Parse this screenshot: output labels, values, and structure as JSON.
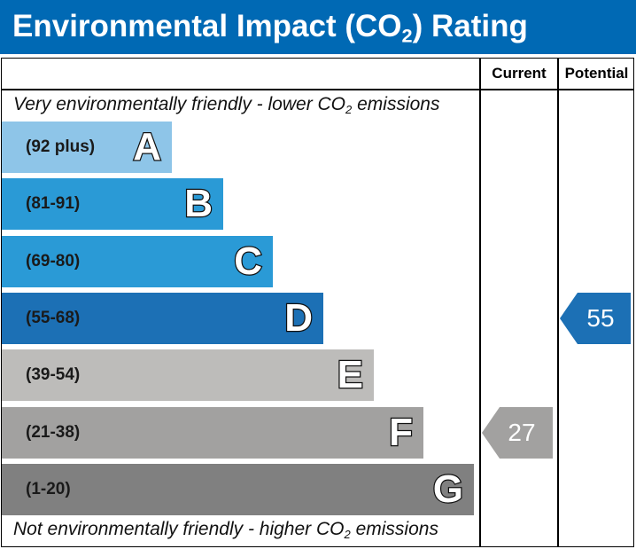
{
  "header": {
    "title_prefix": "Environmental Impact (CO",
    "title_sub": "2",
    "title_suffix": ") Rating",
    "background_color": "#0069b4"
  },
  "columns": {
    "current": "Current",
    "potential": "Potential"
  },
  "notes": {
    "top_prefix": "Very environmentally friendly - lower CO",
    "top_sub": "2",
    "top_suffix": " emissions",
    "bottom_prefix": "Not environmentally friendly - higher CO",
    "bottom_sub": "2",
    "bottom_suffix": " emissions"
  },
  "chart_data": {
    "type": "table",
    "bands": [
      {
        "letter": "A",
        "range": "(92 plus)",
        "min": 92,
        "max": 100,
        "color": "#8ec5e8"
      },
      {
        "letter": "B",
        "range": "(81-91)",
        "min": 81,
        "max": 91,
        "color": "#2a9ad6"
      },
      {
        "letter": "C",
        "range": "(69-80)",
        "min": 69,
        "max": 80,
        "color": "#2a9ad6"
      },
      {
        "letter": "D",
        "range": "(55-68)",
        "min": 55,
        "max": 68,
        "color": "#1c70b5"
      },
      {
        "letter": "E",
        "range": "(39-54)",
        "min": 39,
        "max": 54,
        "color": "#bdbcba"
      },
      {
        "letter": "F",
        "range": "(21-38)",
        "min": 21,
        "max": 38,
        "color": "#a2a1a0"
      },
      {
        "letter": "G",
        "range": "(1-20)",
        "min": 1,
        "max": 20,
        "color": "#808080"
      }
    ],
    "current": {
      "value": 27,
      "band": "F",
      "color": "#a2a1a0"
    },
    "potential": {
      "value": 55,
      "band": "D",
      "color": "#1c70b5"
    }
  }
}
